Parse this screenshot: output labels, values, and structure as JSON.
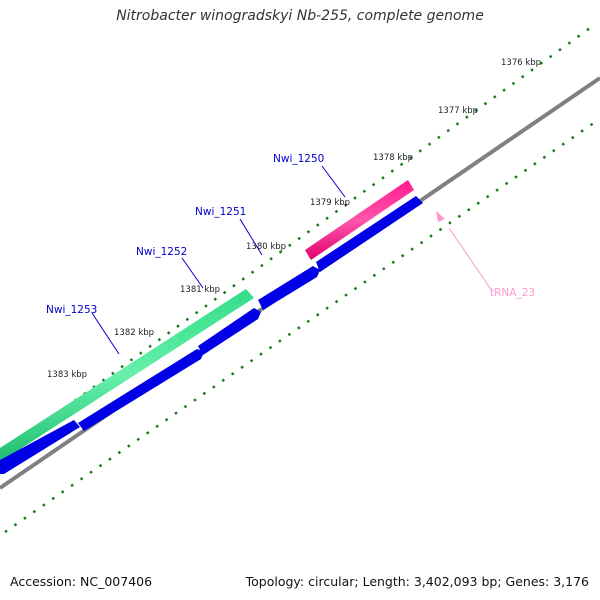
{
  "title": "Nitrobacter winogradskyi Nb-255, complete genome",
  "footer": {
    "accession": "Accession: NC_007406",
    "summary": "Topology: circular; Length: 3,402,093 bp; Genes: 3,176"
  },
  "ticks": [
    {
      "label": "1376 kbp"
    },
    {
      "label": "1377 kbp"
    },
    {
      "label": "1378 kbp"
    },
    {
      "label": "1379 kbp"
    },
    {
      "label": "1380 kbp"
    },
    {
      "label": "1381 kbp"
    },
    {
      "label": "1382 kbp"
    },
    {
      "label": "1383 kbp"
    }
  ],
  "genes": [
    {
      "name": "Nwi_1250",
      "color": "#0000cc"
    },
    {
      "name": "Nwi_1251",
      "color": "#0000cc"
    },
    {
      "name": "Nwi_1252",
      "color": "#0000cc"
    },
    {
      "name": "Nwi_1253",
      "color": "#0000cc"
    }
  ],
  "trna": {
    "name": "tRNA_23",
    "color": "#ff99cc"
  },
  "colors": {
    "cds": "#0000e6",
    "highlight_pink": "#ff1a8c",
    "highlight_green": "#33dd88",
    "backbone": "#808080",
    "tick": "#1a7a1a"
  }
}
